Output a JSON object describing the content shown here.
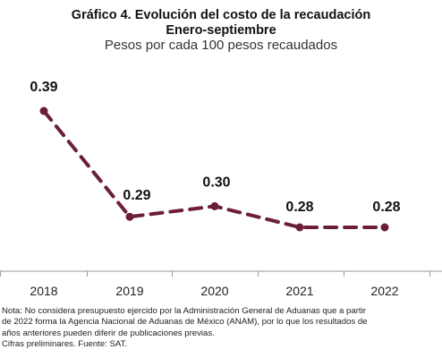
{
  "header": {
    "title_line1": "Gráfico 4. Evolución del costo de la recaudación",
    "title_line2": "Enero-septiembre",
    "subtitle": "Pesos por cada 100 pesos recaudados"
  },
  "chart_data": {
    "type": "line",
    "categories": [
      "2018",
      "2019",
      "2020",
      "2021",
      "2022"
    ],
    "values": [
      0.39,
      0.29,
      0.3,
      0.28,
      0.28
    ],
    "value_labels": [
      "0.39",
      "0.29",
      "0.30",
      "0.28",
      "0.28"
    ],
    "ylim": [
      0.26,
      0.41
    ],
    "grid": false,
    "legend": "none",
    "line_style": "dashed",
    "colors": {
      "line": "#6b1e3a",
      "axis": "#999999"
    }
  },
  "notes": {
    "line1": "Nota: No considera presupuesto ejercido por la Administración General de Aduanas que a partir",
    "line2": "de 2022 forma la Agencia Nacional de Aduanas de México (ANAM), por lo que los resultados de",
    "line3": "años anteriores pueden diferir de publicaciones previas.",
    "line4": "Cifras preliminares. Fuente: SAT."
  }
}
